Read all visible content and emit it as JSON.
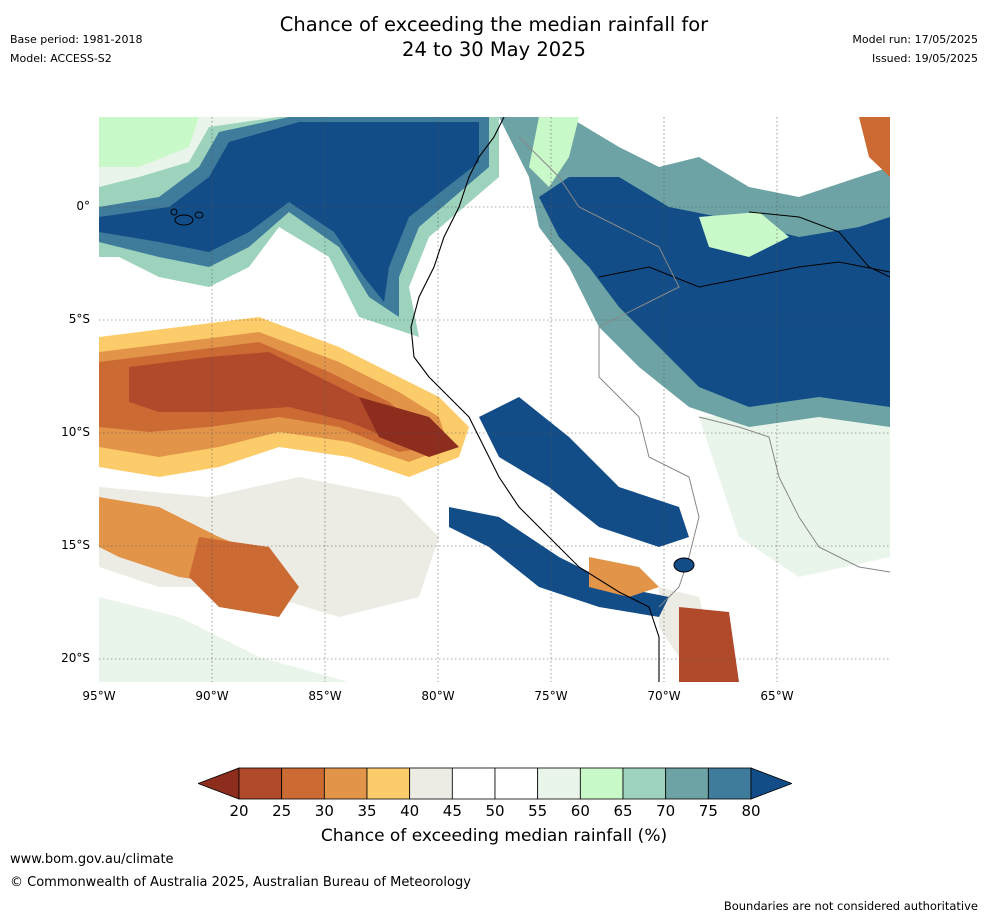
{
  "title": {
    "line1": "Chance of exceeding the median rainfall for",
    "line2": "24 to 30 May 2025"
  },
  "meta_left": {
    "base_period": "Base period: 1981-2018",
    "model": "Model: ACCESS-S2"
  },
  "meta_right": {
    "model_run": "Model run: 17/05/2025",
    "issued": "Issued: 19/05/2025"
  },
  "axes": {
    "y_ticks": [
      "0°",
      "5°S",
      "10°S",
      "15°S",
      "20°S"
    ],
    "x_ticks": [
      "95°W",
      "90°W",
      "85°W",
      "80°W",
      "75°W",
      "70°W",
      "65°W"
    ]
  },
  "colorbar": {
    "title": "Chance of exceeding median rainfall (%)",
    "labels": [
      "20",
      "25",
      "30",
      "35",
      "40",
      "45",
      "50",
      "55",
      "60",
      "65",
      "70",
      "75",
      "80"
    ],
    "colors": [
      "#8c2d1e",
      "#b04a2a",
      "#cc6a34",
      "#e29549",
      "#fdcc6a",
      "#ecebe4",
      "#ffffff",
      "#ffffff",
      "#e9f5ea",
      "#c9f9c9",
      "#9dd3bd",
      "#6da3a4",
      "#3f7b9b",
      "#124d88"
    ]
  },
  "footer": {
    "url": "www.bom.gov.au/climate",
    "copyright": "© Commonwealth of Australia 2025, Australian Bureau of Meteorology",
    "disclaimer": "Boundaries are not considered authoritative"
  }
}
